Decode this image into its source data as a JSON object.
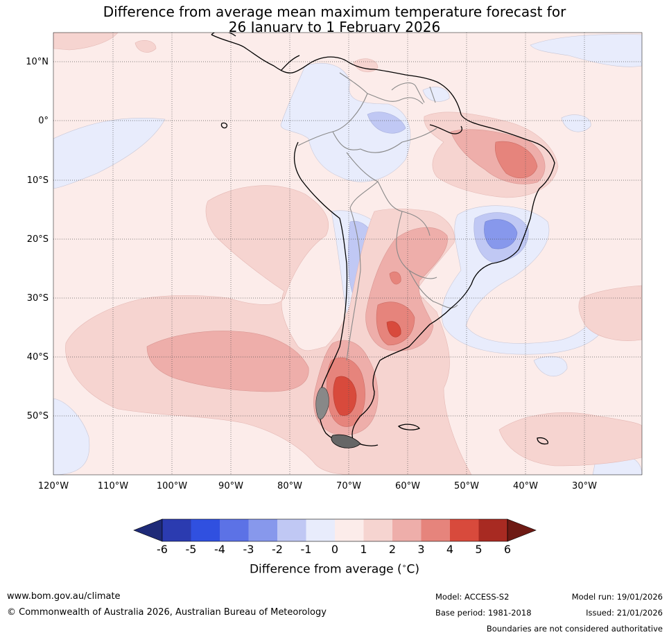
{
  "title_line1": "Difference from average mean maximum temperature forecast for",
  "title_line2": "26 January to 1 February 2026",
  "lat_labels": [
    "10°N",
    "0°",
    "10°S",
    "20°S",
    "30°S",
    "40°S",
    "50°S"
  ],
  "lon_labels": [
    "120°W",
    "110°W",
    "100°W",
    "90°W",
    "80°W",
    "70°W",
    "60°W",
    "50°W",
    "40°W",
    "30°W"
  ],
  "colorbar": {
    "ticks": [
      "-6",
      "-5",
      "-4",
      "-3",
      "-2",
      "-1",
      "0",
      "1",
      "2",
      "3",
      "4",
      "5",
      "6"
    ],
    "colors": [
      "#1e2a78",
      "#2b3bb0",
      "#3050e0",
      "#5c72e6",
      "#8798ec",
      "#c0c8f4",
      "#e8ecfc",
      "#fcecea",
      "#f6d4d0",
      "#eeaeaa",
      "#e6847c",
      "#d84a3c",
      "#a82a22",
      "#6e1a14"
    ],
    "label": "Difference from average (°C)",
    "label_text": "Difference from average (",
    "label_unit": "∘",
    "label_suffix": "C)"
  },
  "footer": {
    "website": "www.bom.gov.au/climate",
    "copyright": "© Commonwealth of Australia 2026, Australian Bureau of Meteorology",
    "model": "Model: ACCESS-S2",
    "base_period": "Base period: 1981-2018",
    "model_run": "Model run: 19/01/2026",
    "issued": "Issued: 21/01/2026",
    "disclaimer": "Boundaries are not considered authoritative"
  }
}
